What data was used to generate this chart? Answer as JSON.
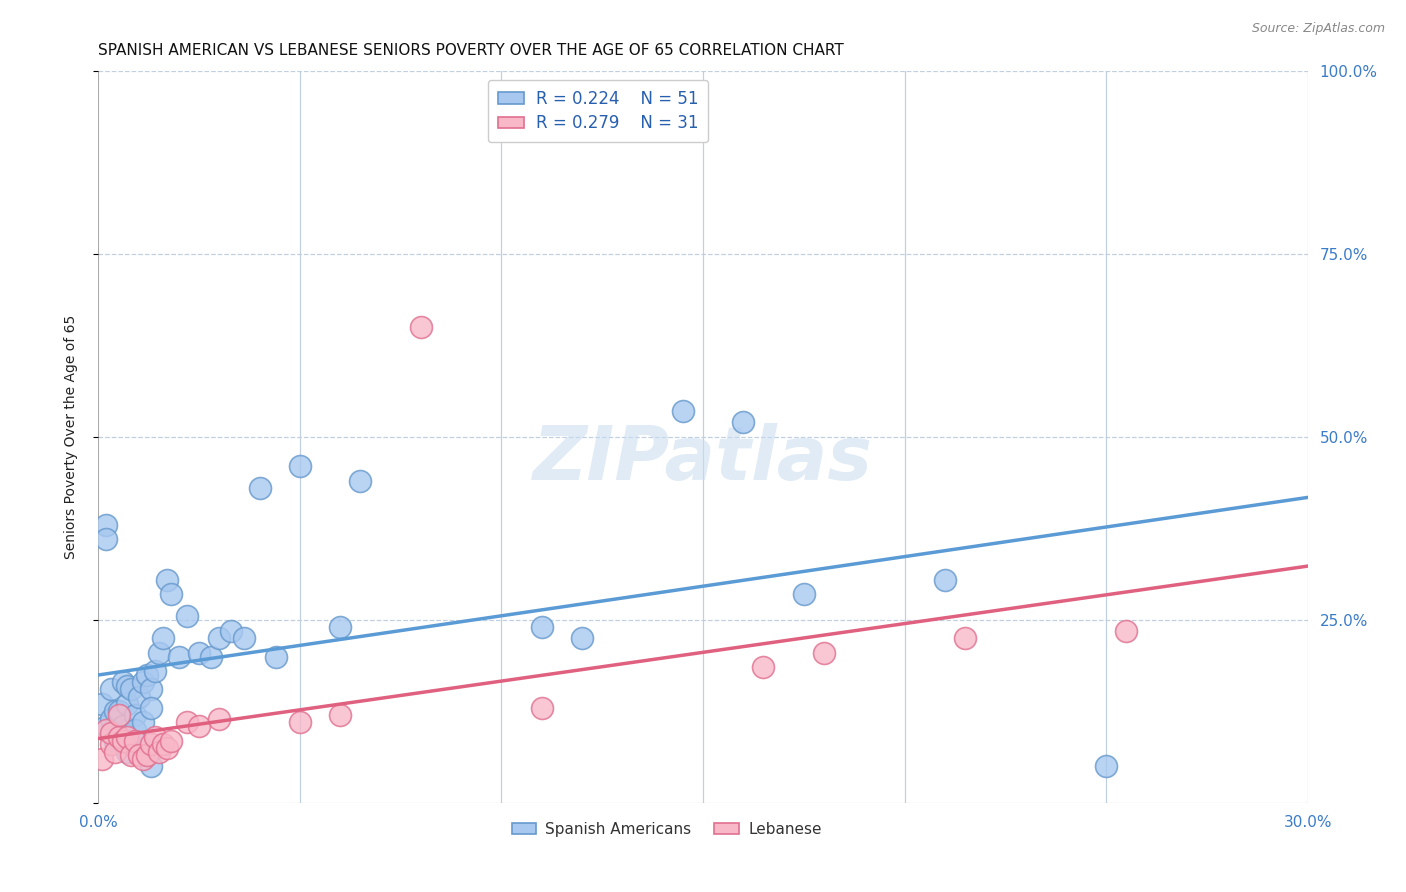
{
  "title": "SPANISH AMERICAN VS LEBANESE SENIORS POVERTY OVER THE AGE OF 65 CORRELATION CHART",
  "source": "Source: ZipAtlas.com",
  "ylabel": "Seniors Poverty Over the Age of 65",
  "xlim": [
    0.0,
    0.3
  ],
  "ylim": [
    0.0,
    1.0
  ],
  "xticks": [
    0.0,
    0.05,
    0.1,
    0.15,
    0.2,
    0.25,
    0.3
  ],
  "yticks": [
    0.0,
    0.25,
    0.5,
    0.75,
    1.0
  ],
  "ytick_right_labels": [
    "",
    "25.0%",
    "50.0%",
    "75.0%",
    "100.0%"
  ],
  "legend_label1": "Spanish Americans",
  "legend_label2": "Lebanese",
  "blue_color": "#A8C8F0",
  "pink_color": "#F8B8C8",
  "blue_edge": "#6699CC",
  "pink_edge": "#E07090",
  "blue_line": "#5B9BD5",
  "pink_line": "#E06080",
  "watermark": "ZIPatlas",
  "sp_x": [
    0.001,
    0.002,
    0.002,
    0.003,
    0.003,
    0.004,
    0.004,
    0.005,
    0.005,
    0.006,
    0.006,
    0.007,
    0.007,
    0.007,
    0.008,
    0.008,
    0.009,
    0.009,
    0.01,
    0.01,
    0.011,
    0.011,
    0.012,
    0.013,
    0.013,
    0.014,
    0.015,
    0.016,
    0.017,
    0.018,
    0.02,
    0.022,
    0.025,
    0.028,
    0.03,
    0.033,
    0.036,
    0.04,
    0.044,
    0.05,
    0.06,
    0.065,
    0.11,
    0.12,
    0.145,
    0.16,
    0.175,
    0.21,
    0.25,
    0.002,
    0.013
  ],
  "sp_y": [
    0.135,
    0.105,
    0.38,
    0.155,
    0.115,
    0.085,
    0.125,
    0.085,
    0.125,
    0.105,
    0.165,
    0.135,
    0.07,
    0.16,
    0.08,
    0.155,
    0.12,
    0.1,
    0.145,
    0.08,
    0.11,
    0.165,
    0.175,
    0.155,
    0.13,
    0.18,
    0.205,
    0.225,
    0.305,
    0.285,
    0.2,
    0.255,
    0.205,
    0.2,
    0.225,
    0.235,
    0.225,
    0.43,
    0.2,
    0.46,
    0.24,
    0.44,
    0.24,
    0.225,
    0.535,
    0.52,
    0.285,
    0.305,
    0.05,
    0.36,
    0.05
  ],
  "lb_x": [
    0.001,
    0.002,
    0.003,
    0.003,
    0.004,
    0.005,
    0.005,
    0.006,
    0.007,
    0.008,
    0.009,
    0.01,
    0.011,
    0.012,
    0.013,
    0.014,
    0.015,
    0.016,
    0.017,
    0.018,
    0.022,
    0.025,
    0.03,
    0.06,
    0.08,
    0.11,
    0.165,
    0.18,
    0.215,
    0.255,
    0.05
  ],
  "lb_y": [
    0.06,
    0.1,
    0.08,
    0.095,
    0.07,
    0.09,
    0.12,
    0.085,
    0.09,
    0.065,
    0.085,
    0.065,
    0.06,
    0.065,
    0.08,
    0.09,
    0.07,
    0.08,
    0.075,
    0.085,
    0.11,
    0.105,
    0.115,
    0.12,
    0.65,
    0.13,
    0.185,
    0.205,
    0.225,
    0.235,
    0.11
  ]
}
